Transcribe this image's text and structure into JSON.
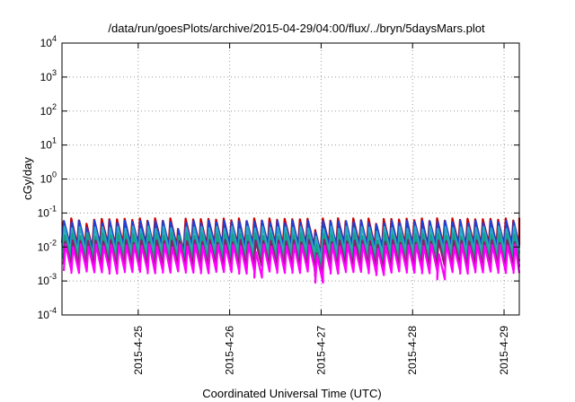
{
  "chart_data": {
    "type": "line",
    "title": "/data/run/goesPlots/archive/2015-04-29/04:00/flux/../bryn/5daysMars.plot",
    "xlabel": "Coordinated Universal Time (UTC)",
    "ylabel": "cGy/day",
    "yscale": "log",
    "ylim": [
      0.0001,
      10000
    ],
    "xlim": [
      "2015-04-24 04:00",
      "2015-04-29 04:00"
    ],
    "grid": true,
    "y_ticks": [
      {
        "base": "10",
        "exp": "-4"
      },
      {
        "base": "10",
        "exp": "-3"
      },
      {
        "base": "10",
        "exp": "-2"
      },
      {
        "base": "10",
        "exp": "-1"
      },
      {
        "base": "10",
        "exp": "0"
      },
      {
        "base": "10",
        "exp": "1"
      },
      {
        "base": "10",
        "exp": "2"
      },
      {
        "base": "10",
        "exp": "3"
      },
      {
        "base": "10",
        "exp": "4"
      }
    ],
    "x_ticks": [
      "2015-4-25",
      "2015-4-26",
      "2015-4-27",
      "2015-4-28",
      "2015-4-29"
    ],
    "series_style": "sawtooth, period about 2 h; rise at each step then decay",
    "series": [
      {
        "color": "#cc0000",
        "peak": 0.07,
        "trough": 0.012
      },
      {
        "color": "#1f3fd1",
        "peak": 0.06,
        "trough": 0.01
      },
      {
        "color": "#2aa8c4",
        "peak": 0.04,
        "trough": 0.007
      },
      {
        "color": "#16a085",
        "peak": 0.025,
        "trough": 0.004
      },
      {
        "color": "#8e1c6d",
        "peak": 0.016,
        "trough": 0.0028
      },
      {
        "color": "#ff00ff",
        "peak": 0.012,
        "trough": 0.0018
      }
    ],
    "dips": [
      {
        "day_offset": 0.2,
        "factor": 0.7
      },
      {
        "day_offset": 1.2,
        "factor": 0.55
      },
      {
        "day_offset": 2.1,
        "factor": 0.7
      },
      {
        "day_offset": 2.75,
        "factor": 0.5
      },
      {
        "day_offset": 3.4,
        "factor": 0.75
      },
      {
        "day_offset": 4.1,
        "factor": 0.6
      }
    ]
  }
}
